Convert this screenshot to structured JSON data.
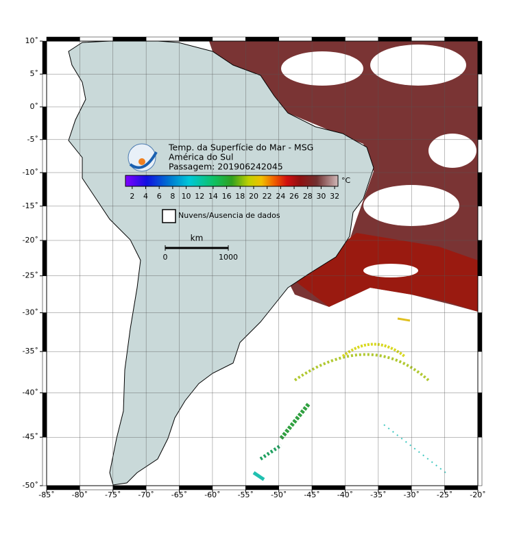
{
  "map": {
    "projection": "mercator",
    "xlim": [
      -85,
      -20
    ],
    "ylim": [
      -50,
      10
    ],
    "grid": true,
    "xticks": [
      {
        "value": -85,
        "label": "-85˚"
      },
      {
        "value": -80,
        "label": "-80˚"
      },
      {
        "value": -75,
        "label": "-75˚"
      },
      {
        "value": -70,
        "label": "-70˚"
      },
      {
        "value": -65,
        "label": "-65˚"
      },
      {
        "value": -60,
        "label": "-60˚"
      },
      {
        "value": -55,
        "label": "-55˚"
      },
      {
        "value": -50,
        "label": "-50˚"
      },
      {
        "value": -45,
        "label": "-45˚"
      },
      {
        "value": -40,
        "label": "-40˚"
      },
      {
        "value": -35,
        "label": "-35˚"
      },
      {
        "value": -30,
        "label": "-30˚"
      },
      {
        "value": -25,
        "label": "-25˚"
      },
      {
        "value": -20,
        "label": "-20˚"
      }
    ],
    "yticks": [
      {
        "value": 10,
        "label": "10˚"
      },
      {
        "value": 5,
        "label": "5˚"
      },
      {
        "value": 0,
        "label": "0˚"
      },
      {
        "value": -5,
        "label": "-5˚"
      },
      {
        "value": -10,
        "label": "-10˚"
      },
      {
        "value": -15,
        "label": "-15˚"
      },
      {
        "value": -20,
        "label": "-20˚"
      },
      {
        "value": -25,
        "label": "-25˚"
      },
      {
        "value": -30,
        "label": "-30˚"
      },
      {
        "value": -35,
        "label": "-35˚"
      },
      {
        "value": -40,
        "label": "-40˚"
      },
      {
        "value": -45,
        "label": "-45˚"
      },
      {
        "value": -50,
        "label": "-50˚"
      }
    ],
    "title_lines": [
      "Temp. da Superfície do Mar - MSG",
      "América do Sul",
      "Passagem: 201906242045"
    ],
    "colorbar": {
      "unit": "°C",
      "lim": [
        1,
        32.5
      ],
      "ticks": [
        2,
        4,
        6,
        8,
        10,
        12,
        14,
        16,
        18,
        20,
        22,
        24,
        26,
        28,
        30,
        32
      ]
    },
    "no_data_label": "Nuvens/Ausencia de dados",
    "scale_bar": {
      "unit": "km",
      "ticks": [
        0,
        1000
      ]
    }
  }
}
